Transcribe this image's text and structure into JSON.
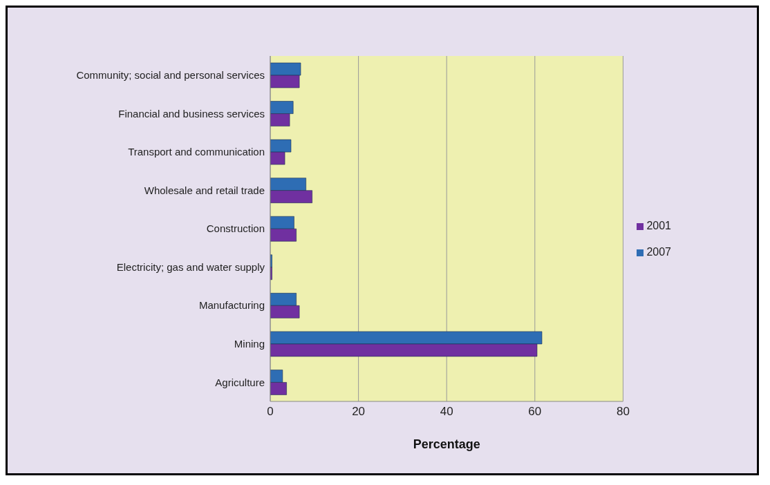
{
  "chart_data": {
    "type": "bar",
    "orientation": "horizontal",
    "xlabel": "Percentage",
    "categories": [
      "Community; social and personal services",
      "Financial and business services",
      "Transport and communication",
      "Wholesale and retail trade",
      "Construction",
      "Electricity; gas and water supply",
      "Manufacturing",
      "Mining",
      "Agriculture"
    ],
    "series": [
      {
        "name": "2007",
        "color": "#2e6db4",
        "values": [
          6.9,
          5.2,
          4.7,
          8.1,
          5.4,
          0.4,
          5.9,
          61.6,
          2.8
        ]
      },
      {
        "name": "2001",
        "color": "#7030a0",
        "values": [
          6.6,
          4.4,
          3.3,
          9.5,
          5.9,
          0.4,
          6.6,
          60.5,
          3.7
        ]
      }
    ],
    "xlim": [
      0,
      80
    ],
    "xticks": [
      0,
      20,
      40,
      60,
      80
    ],
    "grid": "x",
    "legend": "right"
  }
}
